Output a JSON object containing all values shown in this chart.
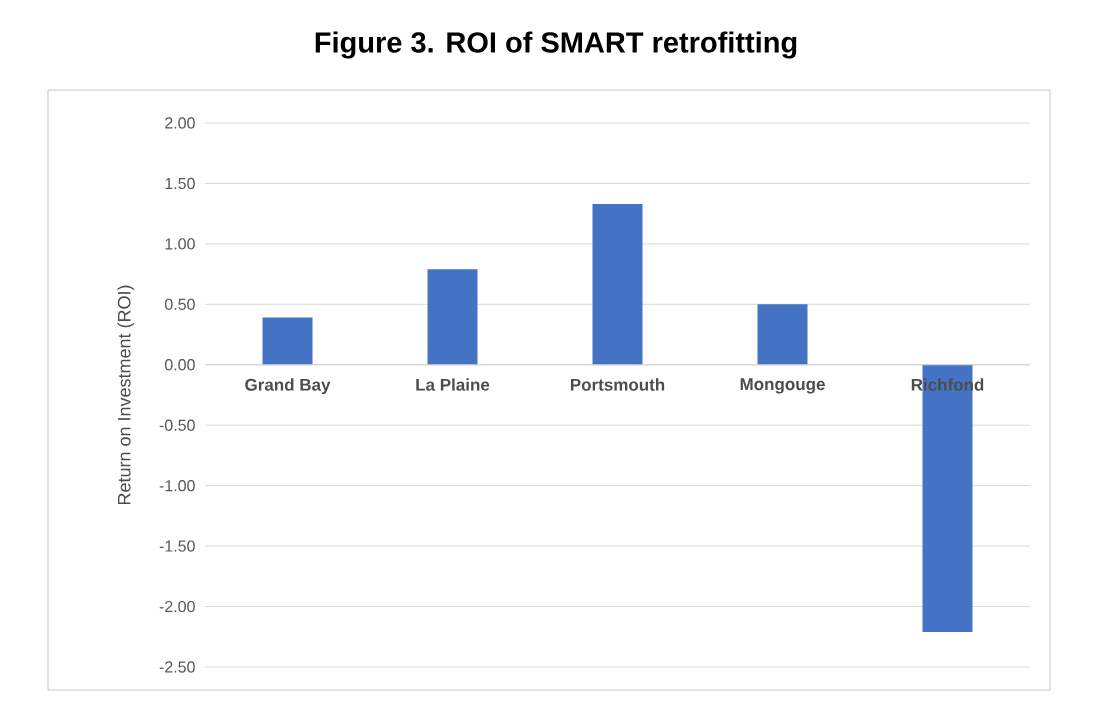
{
  "chart_data": {
    "type": "bar",
    "title": "Figure 3. ROI of SMART retrofitting",
    "ylabel": "Return on Investment (ROI)",
    "categories": [
      "Grand Bay",
      "La Plaine",
      "Portsmouth",
      "Mongouge",
      "Richfond"
    ],
    "values": [
      0.39,
      0.79,
      1.33,
      0.5,
      -2.21
    ],
    "color": "#4472c4",
    "ylim": [
      -2.5,
      2.0
    ],
    "yticks": [
      {
        "value": 2.0,
        "label": "2.00"
      },
      {
        "value": 1.5,
        "label": "1.50"
      },
      {
        "value": 1.0,
        "label": "1.00"
      },
      {
        "value": 0.5,
        "label": "0.50"
      },
      {
        "value": 0.0,
        "label": "0.00"
      },
      {
        "value": -0.5,
        "label": "-0.50"
      },
      {
        "value": -1.0,
        "label": "-1.00"
      },
      {
        "value": -1.5,
        "label": "-1.50"
      },
      {
        "value": -2.0,
        "label": "-2.00"
      },
      {
        "value": -2.5,
        "label": "-2.50"
      }
    ],
    "grid": "y"
  }
}
